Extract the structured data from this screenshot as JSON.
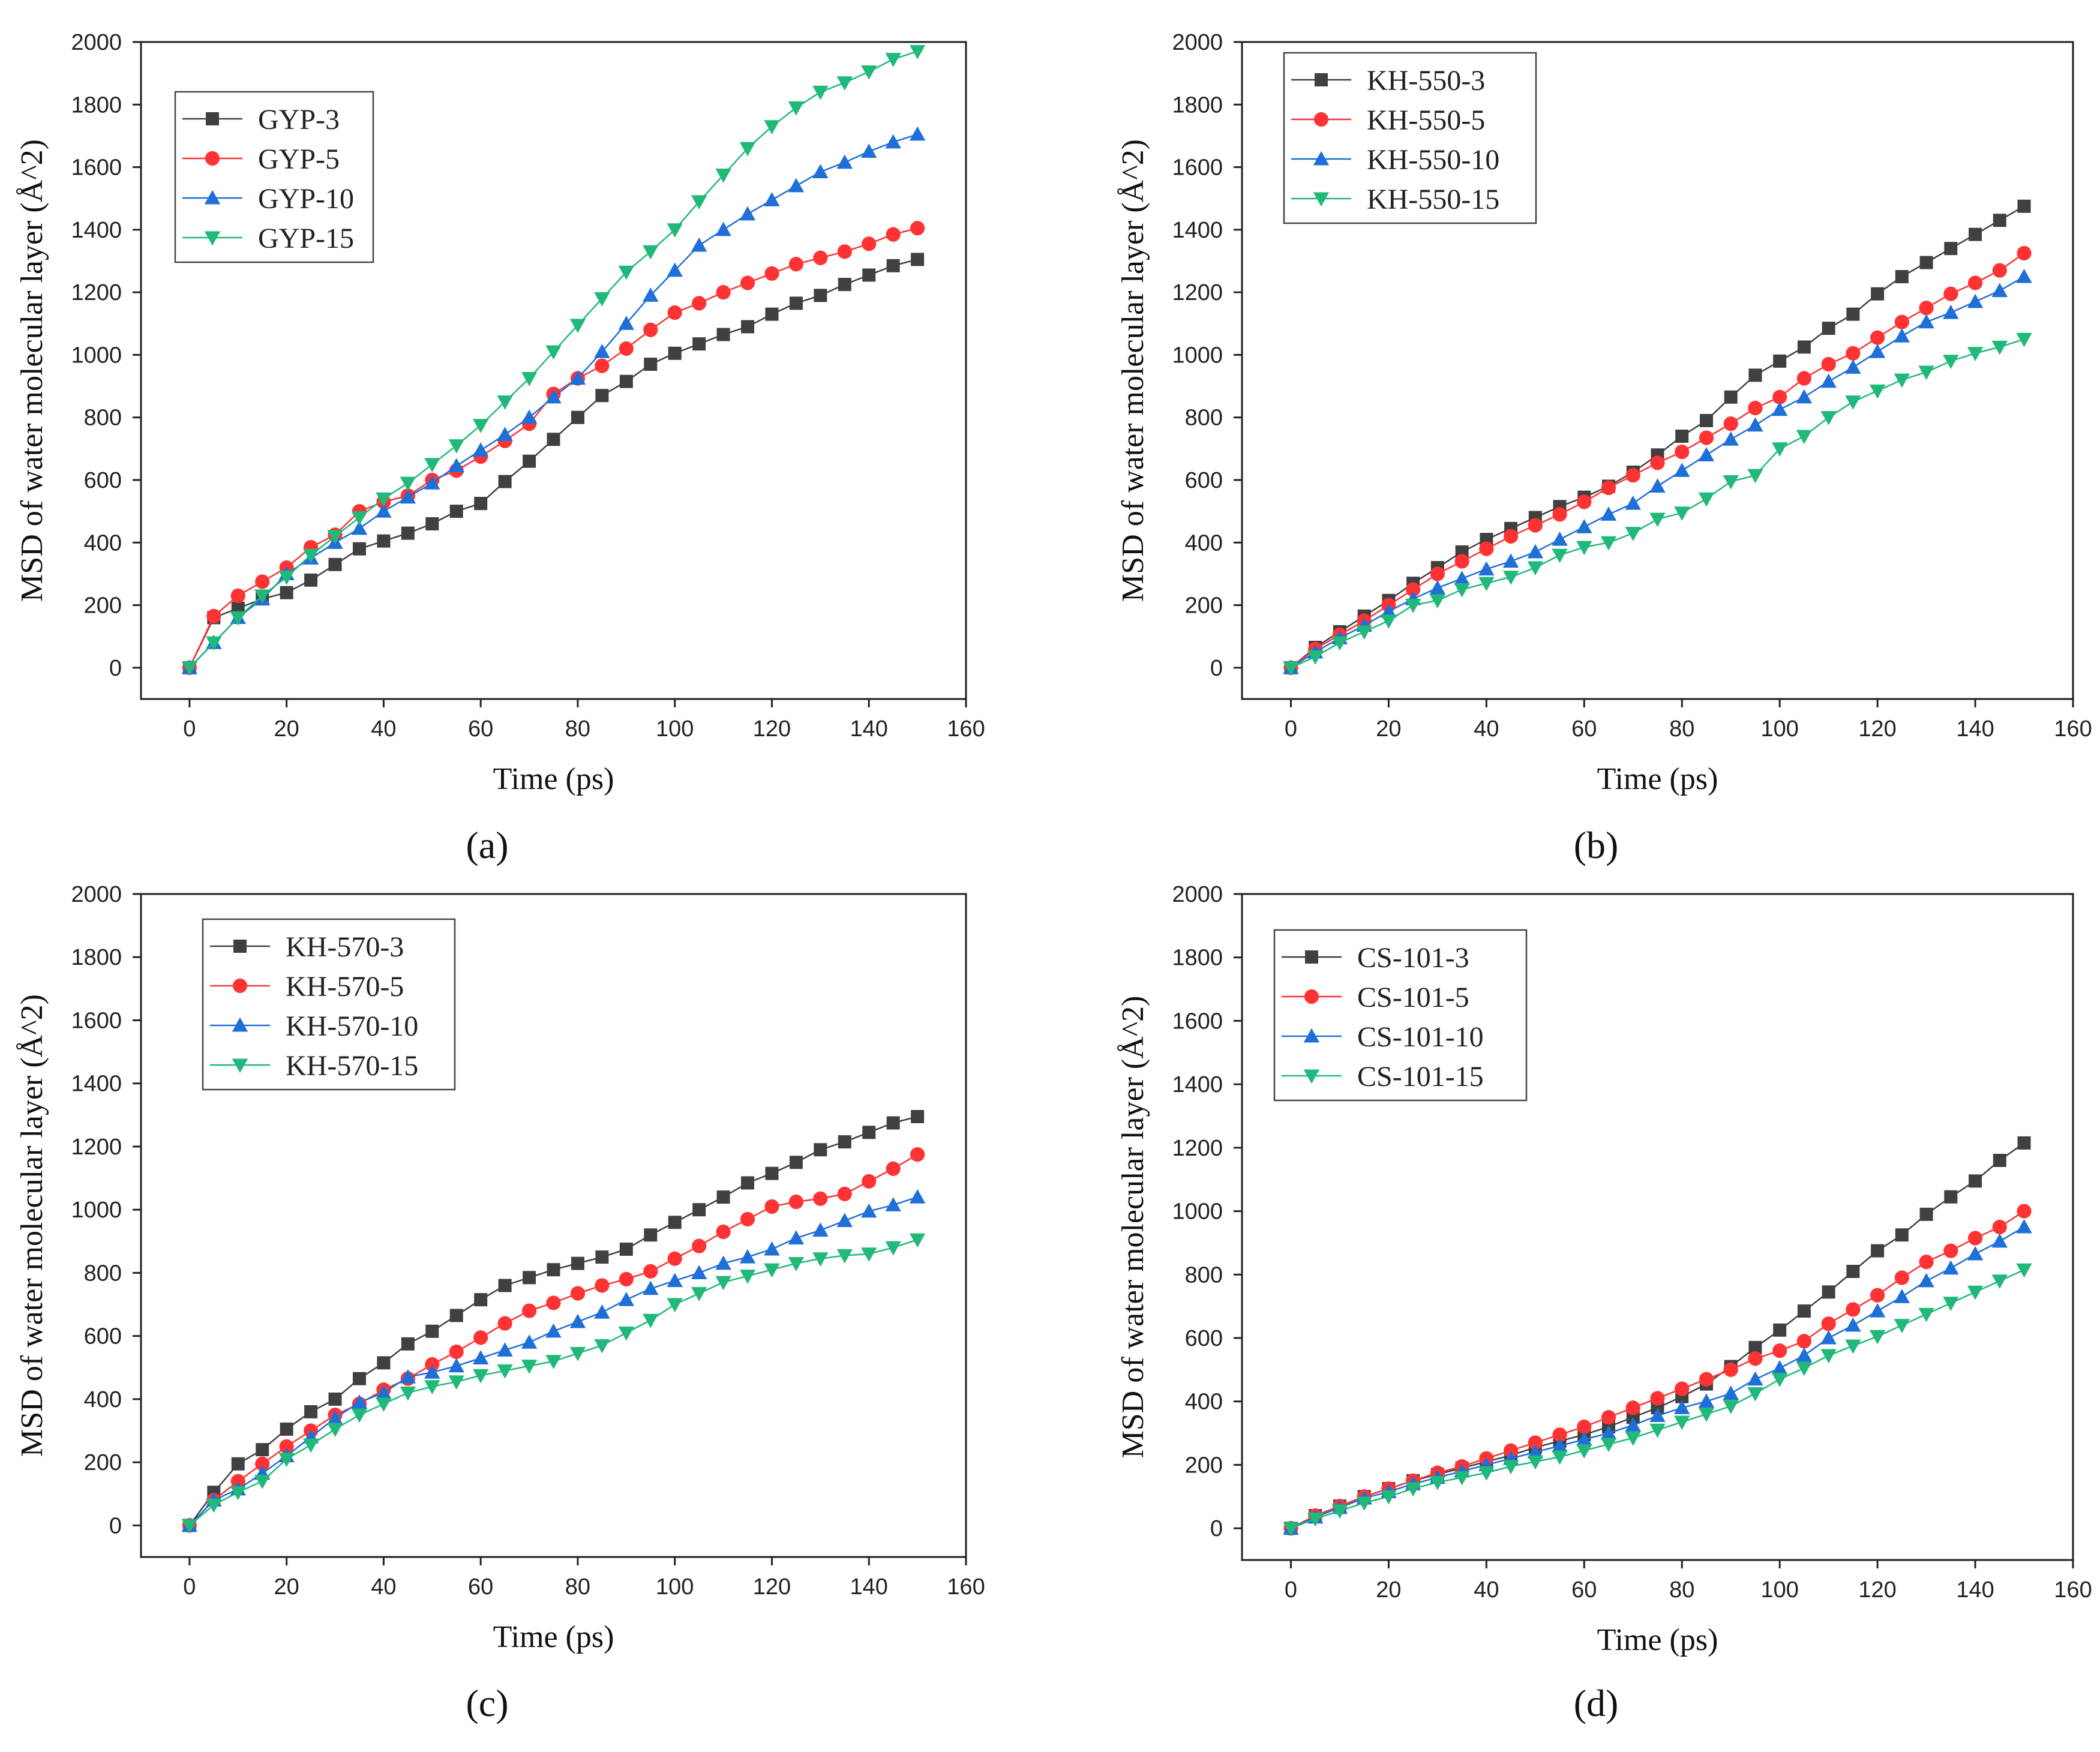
{
  "figure": {
    "series_colors": [
      "#404040",
      "#ff3333",
      "#1f6fd8",
      "#21b97a"
    ]
  },
  "chart_data": [
    {
      "type": "line",
      "panel_label": "(a)",
      "xlabel": "Time (ps)",
      "ylabel": "MSD of water molecular layer (Å^2)",
      "xlim": [
        -10,
        160
      ],
      "ylim": [
        -100,
        2000
      ],
      "xticks": [
        0,
        20,
        40,
        60,
        80,
        100,
        120,
        140,
        160
      ],
      "yticks": [
        0,
        200,
        400,
        600,
        800,
        1000,
        1200,
        1400,
        1600,
        1800,
        2000
      ],
      "legend": "top-left",
      "x": [
        0,
        5,
        10,
        15,
        20,
        25,
        30,
        35,
        40,
        45,
        50,
        55,
        60,
        65,
        70,
        75,
        80,
        85,
        90,
        95,
        100,
        105,
        110,
        115,
        120,
        125,
        130,
        135,
        140,
        145,
        150
      ],
      "series": [
        {
          "name": "GYP-3",
          "marker": "square",
          "values": [
            0,
            160,
            190,
            220,
            240,
            280,
            330,
            380,
            405,
            430,
            460,
            500,
            525,
            595,
            660,
            730,
            800,
            870,
            915,
            970,
            1005,
            1035,
            1065,
            1090,
            1130,
            1165,
            1190,
            1225,
            1255,
            1285,
            1305
          ]
        },
        {
          "name": "GYP-5",
          "marker": "circle",
          "values": [
            0,
            165,
            230,
            275,
            320,
            385,
            425,
            500,
            530,
            550,
            600,
            630,
            675,
            725,
            780,
            875,
            925,
            965,
            1020,
            1080,
            1135,
            1165,
            1200,
            1230,
            1260,
            1290,
            1310,
            1330,
            1355,
            1385,
            1405
          ]
        },
        {
          "name": "GYP-10",
          "marker": "triangle-up",
          "values": [
            0,
            80,
            160,
            220,
            300,
            350,
            400,
            445,
            500,
            545,
            590,
            645,
            695,
            745,
            800,
            865,
            925,
            1010,
            1100,
            1190,
            1270,
            1350,
            1400,
            1450,
            1495,
            1540,
            1585,
            1615,
            1650,
            1680,
            1705
          ]
        },
        {
          "name": "GYP-15",
          "marker": "triangle-down",
          "values": [
            0,
            80,
            160,
            230,
            290,
            360,
            420,
            480,
            540,
            590,
            650,
            710,
            775,
            850,
            925,
            1010,
            1095,
            1180,
            1265,
            1330,
            1400,
            1490,
            1575,
            1660,
            1730,
            1790,
            1840,
            1870,
            1905,
            1945,
            1970
          ]
        }
      ]
    },
    {
      "type": "line",
      "panel_label": "(b)",
      "xlabel": "Time (ps)",
      "ylabel": "MSD of water molecular layer (Å^2)",
      "xlim": [
        -10,
        160
      ],
      "ylim": [
        -100,
        2000
      ],
      "xticks": [
        0,
        20,
        40,
        60,
        80,
        100,
        120,
        140,
        160
      ],
      "yticks": [
        0,
        200,
        400,
        600,
        800,
        1000,
        1200,
        1400,
        1600,
        1800,
        2000
      ],
      "legend": "top-left",
      "x": [
        0,
        5,
        10,
        15,
        20,
        25,
        30,
        35,
        40,
        45,
        50,
        55,
        60,
        65,
        70,
        75,
        80,
        85,
        90,
        95,
        100,
        105,
        110,
        115,
        120,
        125,
        130,
        135,
        140,
        145,
        150
      ],
      "series": [
        {
          "name": "KH-550-3",
          "marker": "square",
          "values": [
            0,
            65,
            115,
            165,
            215,
            270,
            320,
            370,
            410,
            445,
            480,
            515,
            545,
            580,
            625,
            680,
            740,
            790,
            865,
            935,
            980,
            1025,
            1085,
            1130,
            1195,
            1250,
            1295,
            1340,
            1385,
            1430,
            1475
          ]
        },
        {
          "name": "KH-550-5",
          "marker": "circle",
          "values": [
            0,
            60,
            105,
            150,
            200,
            250,
            300,
            340,
            380,
            420,
            455,
            490,
            530,
            575,
            615,
            655,
            690,
            735,
            780,
            830,
            865,
            925,
            970,
            1005,
            1055,
            1105,
            1150,
            1195,
            1230,
            1270,
            1325
          ]
        },
        {
          "name": "KH-550-10",
          "marker": "triangle-up",
          "values": [
            0,
            50,
            95,
            135,
            180,
            220,
            255,
            285,
            315,
            340,
            370,
            410,
            450,
            490,
            525,
            580,
            630,
            680,
            730,
            775,
            825,
            865,
            915,
            960,
            1010,
            1060,
            1105,
            1135,
            1170,
            1205,
            1250
          ]
        },
        {
          "name": "KH-550-15",
          "marker": "triangle-down",
          "values": [
            0,
            35,
            80,
            115,
            150,
            200,
            215,
            250,
            270,
            290,
            320,
            360,
            385,
            400,
            430,
            475,
            495,
            540,
            595,
            615,
            700,
            740,
            800,
            850,
            885,
            920,
            945,
            980,
            1005,
            1025,
            1050
          ]
        }
      ]
    },
    {
      "type": "line",
      "panel_label": "(c)",
      "xlabel": "Time (ps)",
      "ylabel": "MSD of water molecular layer (Å^2)",
      "xlim": [
        -10,
        160
      ],
      "ylim": [
        -100,
        2000
      ],
      "xticks": [
        0,
        20,
        40,
        60,
        80,
        100,
        120,
        140,
        160
      ],
      "yticks": [
        0,
        200,
        400,
        600,
        800,
        1000,
        1200,
        1400,
        1600,
        1800,
        2000
      ],
      "legend": "top-left",
      "x": [
        0,
        5,
        10,
        15,
        20,
        25,
        30,
        35,
        40,
        45,
        50,
        55,
        60,
        65,
        70,
        75,
        80,
        85,
        90,
        95,
        100,
        105,
        110,
        115,
        120,
        125,
        130,
        135,
        140,
        145,
        150
      ],
      "series": [
        {
          "name": "KH-570-3",
          "marker": "square",
          "values": [
            0,
            105,
            195,
            240,
            305,
            360,
            400,
            465,
            515,
            575,
            615,
            665,
            715,
            760,
            785,
            810,
            830,
            850,
            875,
            920,
            960,
            1000,
            1040,
            1085,
            1115,
            1150,
            1190,
            1215,
            1245,
            1275,
            1295
          ]
        },
        {
          "name": "KH-570-5",
          "marker": "circle",
          "values": [
            0,
            80,
            140,
            195,
            250,
            300,
            350,
            385,
            430,
            465,
            510,
            550,
            595,
            640,
            680,
            705,
            735,
            760,
            780,
            805,
            845,
            885,
            930,
            970,
            1010,
            1025,
            1035,
            1050,
            1090,
            1130,
            1175
          ]
        },
        {
          "name": "KH-570-10",
          "marker": "triangle-up",
          "values": [
            0,
            80,
            115,
            165,
            220,
            280,
            340,
            390,
            420,
            470,
            485,
            505,
            530,
            555,
            580,
            615,
            645,
            675,
            715,
            750,
            775,
            800,
            830,
            850,
            875,
            910,
            935,
            965,
            995,
            1015,
            1040
          ]
        },
        {
          "name": "KH-570-15",
          "marker": "triangle-down",
          "values": [
            0,
            65,
            105,
            140,
            210,
            255,
            305,
            350,
            385,
            420,
            440,
            455,
            475,
            490,
            505,
            520,
            545,
            570,
            610,
            650,
            700,
            735,
            770,
            790,
            810,
            830,
            845,
            855,
            860,
            880,
            905
          ]
        }
      ]
    },
    {
      "type": "line",
      "panel_label": "(d)",
      "xlabel": "Time (ps)",
      "ylabel": "MSD of water molecular layer (Å^2)",
      "xlim": [
        -10,
        160
      ],
      "ylim": [
        -100,
        2000
      ],
      "xticks": [
        0,
        20,
        40,
        60,
        80,
        100,
        120,
        140,
        160
      ],
      "yticks": [
        0,
        200,
        400,
        600,
        800,
        1000,
        1200,
        1400,
        1600,
        1800,
        2000
      ],
      "legend": "top-left",
      "x": [
        0,
        5,
        10,
        15,
        20,
        25,
        30,
        35,
        40,
        45,
        50,
        55,
        60,
        65,
        70,
        75,
        80,
        85,
        90,
        95,
        100,
        105,
        110,
        115,
        120,
        125,
        130,
        135,
        140,
        145,
        150
      ],
      "series": [
        {
          "name": "CS-101-3",
          "marker": "square",
          "values": [
            0,
            40,
            70,
            100,
            125,
            150,
            170,
            190,
            210,
            230,
            255,
            275,
            295,
            320,
            350,
            380,
            415,
            455,
            510,
            570,
            625,
            685,
            745,
            810,
            875,
            925,
            990,
            1045,
            1095,
            1160,
            1215
          ]
        },
        {
          "name": "CS-101-5",
          "marker": "circle",
          "values": [
            0,
            40,
            70,
            100,
            125,
            150,
            175,
            195,
            220,
            245,
            270,
            295,
            320,
            350,
            380,
            410,
            440,
            470,
            500,
            535,
            560,
            590,
            645,
            690,
            735,
            790,
            840,
            875,
            915,
            950,
            1000
          ]
        },
        {
          "name": "CS-101-10",
          "marker": "triangle-up",
          "values": [
            0,
            35,
            65,
            95,
            115,
            140,
            160,
            180,
            200,
            220,
            240,
            260,
            280,
            300,
            325,
            355,
            380,
            400,
            425,
            470,
            505,
            545,
            600,
            640,
            685,
            730,
            780,
            820,
            865,
            905,
            950
          ]
        },
        {
          "name": "CS-101-15",
          "marker": "triangle-down",
          "values": [
            0,
            30,
            55,
            80,
            100,
            125,
            145,
            160,
            175,
            195,
            210,
            225,
            245,
            265,
            285,
            310,
            335,
            360,
            385,
            425,
            470,
            505,
            545,
            575,
            605,
            640,
            675,
            710,
            745,
            780,
            815
          ]
        }
      ]
    }
  ]
}
